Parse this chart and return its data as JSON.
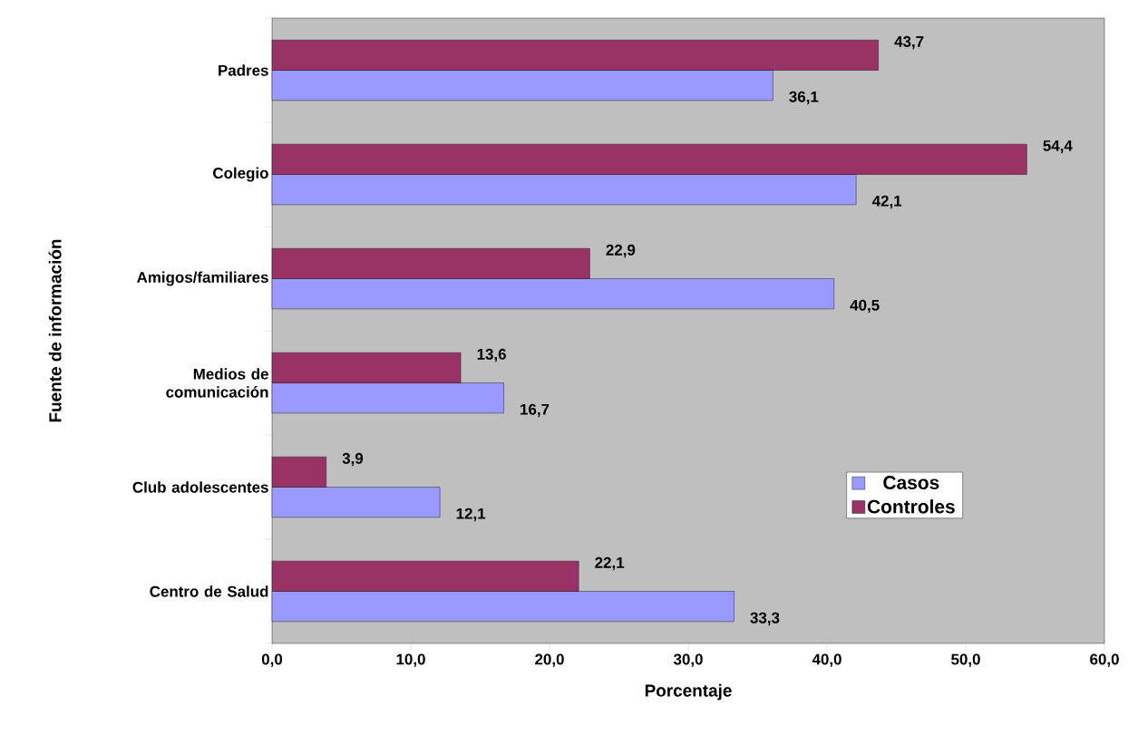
{
  "chart_data": {
    "type": "bar",
    "orientation": "horizontal",
    "xlabel": "Porcentaje",
    "ylabel": "Fuente de información",
    "categories": [
      "Padres",
      "Colegio",
      "Amigos/familiares",
      "Medios de comunicación",
      "Club adolescentes",
      "Centro de Salud"
    ],
    "series": [
      {
        "name": "Casos",
        "color": "#9999ff",
        "values": [
          36.1,
          42.1,
          40.5,
          16.7,
          12.1,
          33.3
        ],
        "value_labels": [
          "36,1",
          "42,1",
          "40,5",
          "16,7",
          "12,1",
          "33,3"
        ]
      },
      {
        "name": "Controles",
        "color": "#993366",
        "values": [
          43.7,
          54.4,
          22.9,
          13.6,
          3.9,
          22.1
        ],
        "value_labels": [
          "43,7",
          "54,4",
          "22,9",
          "13,6",
          "3,9",
          "22,1"
        ]
      }
    ],
    "xlim": [
      0,
      60
    ],
    "xticks": [
      {
        "value": 0,
        "label": "0,0"
      },
      {
        "value": 10,
        "label": "10,0"
      },
      {
        "value": 20,
        "label": "20,0"
      },
      {
        "value": 30,
        "label": "30,0"
      },
      {
        "value": 40,
        "label": "40,0"
      },
      {
        "value": 50,
        "label": "50,0"
      },
      {
        "value": 60,
        "label": "60,0"
      }
    ],
    "legend": "right"
  }
}
